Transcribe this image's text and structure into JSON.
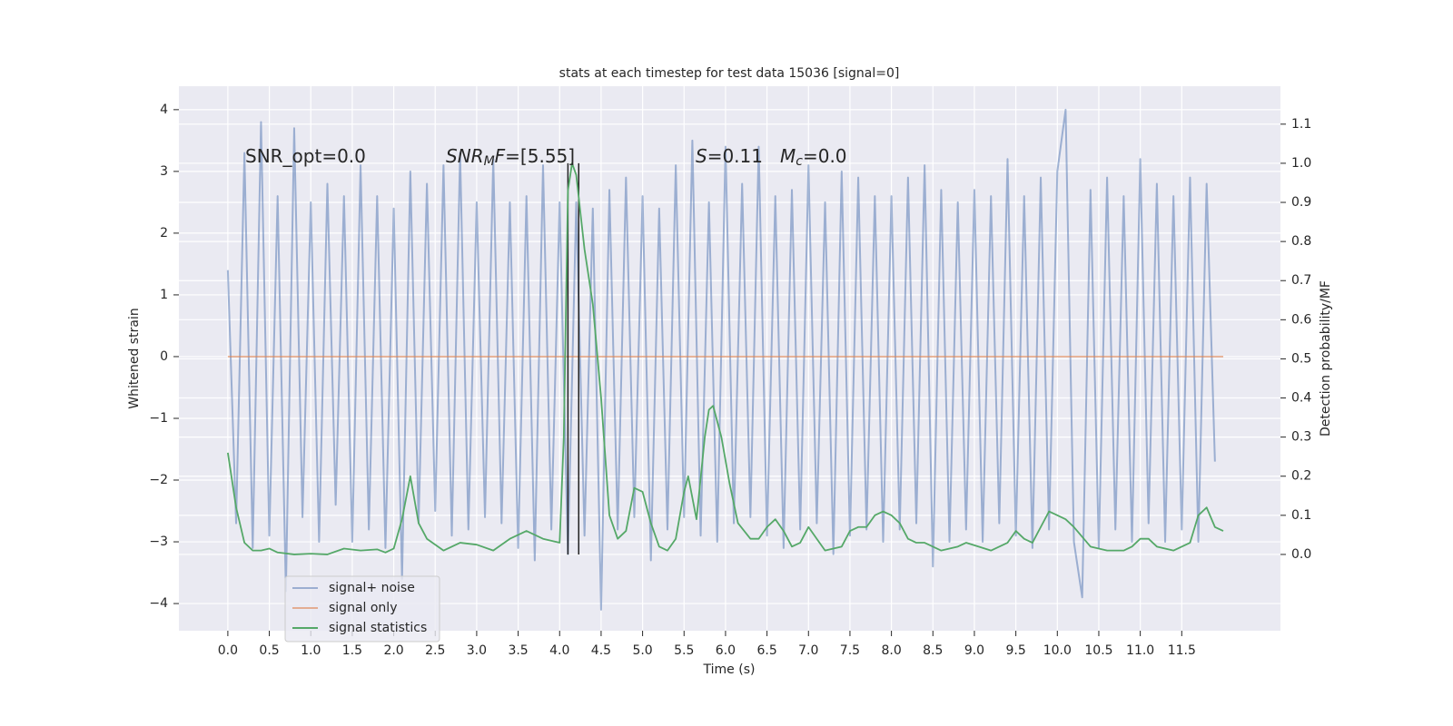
{
  "chart_data": {
    "type": "line",
    "title": "stats at each timestep for test data 15036 [signal=0]",
    "xlabel": "Time (s)",
    "ylabel": "Whitened strain",
    "y2label": "Detection probability/MF",
    "xlim": [
      -0.59,
      12.69
    ],
    "ylim": [
      -4.44,
      4.38
    ],
    "y2lim": [
      -0.195,
      1.197
    ],
    "xticks": [
      {
        "value": 0,
        "label": "0.0"
      },
      0.5,
      {
        "value": 1,
        "label": "1.0"
      },
      1.5,
      {
        "value": 2,
        "label": "2.0"
      },
      2.5,
      {
        "value": 3,
        "label": "3.0"
      },
      3.5,
      {
        "value": 4,
        "label": "4.0"
      },
      4.5,
      {
        "value": 5,
        "label": "5.0"
      },
      5.5,
      {
        "value": 6,
        "label": "6.0"
      },
      6.5,
      {
        "value": 7,
        "label": "7.0"
      },
      7.5,
      {
        "value": 8,
        "label": "8.0"
      },
      8.5,
      {
        "value": 9,
        "label": "9.0"
      },
      9.5,
      {
        "value": 10,
        "label": "10.0"
      },
      10.5,
      {
        "value": 11,
        "label": "11.0"
      },
      11.5
    ],
    "yticks": [
      {
        "value": -4,
        "label": "−4"
      },
      {
        "value": -3,
        "label": "−3"
      },
      {
        "value": -2,
        "label": "−2"
      },
      {
        "value": -1,
        "label": "−1"
      },
      0,
      1,
      2,
      3,
      4
    ],
    "y2ticks": [
      {
        "value": 0,
        "label": "0.0"
      },
      0.1,
      0.2,
      0.3,
      0.4,
      0.5,
      0.6,
      0.7,
      0.8,
      0.9,
      {
        "value": 1,
        "label": "1.0"
      },
      1.1
    ],
    "grid": true,
    "legend_loc": "lower left",
    "series": [
      {
        "name": "signal+ noise",
        "color": "#4c72b0",
        "opacity": 0.5,
        "x": [
          0.0,
          0.1,
          0.2,
          0.3,
          0.4,
          0.5,
          0.6,
          0.7,
          0.8,
          0.9,
          1.0,
          1.1,
          1.2,
          1.3,
          1.4,
          1.5,
          1.6,
          1.7,
          1.8,
          1.9,
          2.0,
          2.1,
          2.2,
          2.3,
          2.4,
          2.5,
          2.6,
          2.7,
          2.8,
          2.9,
          3.0,
          3.1,
          3.2,
          3.3,
          3.4,
          3.5,
          3.6,
          3.7,
          3.8,
          3.9,
          4.0,
          4.1,
          4.2,
          4.3,
          4.4,
          4.5,
          4.6,
          4.7,
          4.8,
          4.9,
          5.0,
          5.1,
          5.2,
          5.3,
          5.4,
          5.5,
          5.6,
          5.7,
          5.8,
          5.9,
          6.0,
          6.1,
          6.2,
          6.3,
          6.4,
          6.5,
          6.6,
          6.7,
          6.8,
          6.9,
          7.0,
          7.1,
          7.2,
          7.3,
          7.4,
          7.5,
          7.6,
          7.7,
          7.8,
          7.9,
          8.0,
          8.1,
          8.2,
          8.3,
          8.4,
          8.5,
          8.6,
          8.7,
          8.8,
          8.9,
          9.0,
          9.1,
          9.2,
          9.3,
          9.4,
          9.5,
          9.6,
          9.7,
          9.8,
          9.9,
          10.0,
          10.1,
          10.2,
          10.3,
          10.4,
          10.5,
          10.6,
          10.7,
          10.8,
          10.9,
          11.0,
          11.1,
          11.2,
          11.3,
          11.4,
          11.5,
          11.6,
          11.7,
          11.8,
          11.9
        ],
        "values": [
          1.4,
          -2.7,
          3.3,
          -3.1,
          3.8,
          -2.9,
          2.6,
          -3.8,
          3.7,
          -2.6,
          2.5,
          -3.0,
          2.8,
          -2.4,
          2.6,
          -3.0,
          3.1,
          -2.8,
          2.6,
          -3.1,
          2.4,
          -3.6,
          3.0,
          -2.7,
          2.8,
          -2.5,
          3.1,
          -2.9,
          3.3,
          -2.8,
          2.5,
          -2.6,
          3.2,
          -2.7,
          2.5,
          -3.1,
          2.6,
          -3.3,
          3.1,
          -2.8,
          2.5,
          -3.2,
          2.5,
          -2.9,
          2.4,
          -4.1,
          2.7,
          -2.8,
          2.9,
          -2.6,
          2.6,
          -3.3,
          2.4,
          -2.8,
          3.1,
          -2.6,
          3.5,
          -2.9,
          2.5,
          -3.0,
          3.4,
          -2.7,
          2.8,
          -2.6,
          3.4,
          -2.9,
          2.6,
          -3.1,
          2.7,
          -2.8,
          3.1,
          -2.7,
          2.5,
          -3.2,
          3.0,
          -2.9,
          2.9,
          -2.8,
          2.6,
          -3.0,
          2.6,
          -2.8,
          2.9,
          -2.7,
          3.1,
          -3.4,
          2.7,
          -3.0,
          2.5,
          -2.8,
          2.7,
          -3.0,
          2.6,
          -2.7,
          3.2,
          -2.9,
          2.6,
          -3.1,
          2.9,
          -2.8,
          3.0,
          4.0,
          -3.0,
          -3.9,
          2.7,
          -3.1,
          2.9,
          -2.8,
          2.6,
          -3.0,
          3.2,
          -2.7,
          2.8,
          -3.0,
          2.6,
          -2.8,
          2.9,
          -3.0,
          2.8,
          -1.7
        ]
      },
      {
        "name": "signal only",
        "color": "#dd8452",
        "opacity": 0.6,
        "x": [
          0,
          12
        ],
        "values": [
          0,
          0
        ]
      },
      {
        "name": "signal statistics",
        "color": "#55a868",
        "opacity": 1,
        "axis": "y2",
        "x": [
          0.0,
          0.1,
          0.2,
          0.3,
          0.4,
          0.5,
          0.6,
          0.8,
          1.0,
          1.2,
          1.4,
          1.6,
          1.8,
          1.9,
          2.0,
          2.1,
          2.2,
          2.3,
          2.4,
          2.6,
          2.8,
          3.0,
          3.2,
          3.4,
          3.6,
          3.8,
          4.0,
          4.05,
          4.1,
          4.15,
          4.2,
          4.3,
          4.4,
          4.5,
          4.6,
          4.7,
          4.8,
          4.9,
          5.0,
          5.1,
          5.2,
          5.3,
          5.4,
          5.5,
          5.55,
          5.65,
          5.75,
          5.8,
          5.85,
          5.95,
          6.05,
          6.15,
          6.3,
          6.4,
          6.5,
          6.6,
          6.7,
          6.8,
          6.9,
          7.0,
          7.1,
          7.2,
          7.4,
          7.5,
          7.6,
          7.7,
          7.8,
          7.9,
          8.0,
          8.1,
          8.2,
          8.3,
          8.4,
          8.6,
          8.8,
          8.9,
          9.2,
          9.4,
          9.5,
          9.6,
          9.7,
          9.9,
          10.0,
          10.1,
          10.2,
          10.4,
          10.6,
          10.8,
          10.9,
          11.0,
          11.1,
          11.2,
          11.4,
          11.6,
          11.7,
          11.8,
          11.9,
          12.0
        ],
        "values": [
          0.26,
          0.12,
          0.03,
          0.01,
          0.01,
          0.015,
          0.005,
          0.0,
          0.002,
          0.0,
          0.015,
          0.01,
          0.013,
          0.005,
          0.015,
          0.09,
          0.2,
          0.08,
          0.04,
          0.01,
          0.03,
          0.025,
          0.01,
          0.04,
          0.06,
          0.04,
          0.03,
          0.3,
          0.93,
          1.0,
          0.97,
          0.78,
          0.64,
          0.4,
          0.1,
          0.04,
          0.06,
          0.17,
          0.16,
          0.08,
          0.02,
          0.01,
          0.04,
          0.16,
          0.2,
          0.09,
          0.3,
          0.37,
          0.38,
          0.3,
          0.18,
          0.08,
          0.04,
          0.04,
          0.07,
          0.09,
          0.06,
          0.02,
          0.03,
          0.07,
          0.04,
          0.01,
          0.02,
          0.06,
          0.07,
          0.07,
          0.1,
          0.11,
          0.1,
          0.08,
          0.04,
          0.03,
          0.03,
          0.01,
          0.02,
          0.03,
          0.01,
          0.03,
          0.06,
          0.04,
          0.03,
          0.11,
          0.1,
          0.09,
          0.07,
          0.02,
          0.01,
          0.01,
          0.02,
          0.04,
          0.04,
          0.02,
          0.01,
          0.03,
          0.1,
          0.12,
          0.07,
          0.06
        ]
      }
    ],
    "vlines": {
      "x": [
        4.1,
        4.23
      ],
      "ymin": 0,
      "ymax": 1.0,
      "axis": "y2",
      "color": "#222222"
    },
    "annotations": [
      {
        "parts": [
          {
            "text": "SNR_opt=0.0"
          }
        ]
      },
      {
        "parts": [
          {
            "text": "SNR",
            "italic": true
          },
          {
            "text": "M",
            "italic": true,
            "sub": true
          },
          {
            "text": "F",
            "italic": true
          },
          {
            "text": "=[5.55]"
          }
        ]
      },
      {
        "parts": [
          {
            "text": "S",
            "italic": true
          },
          {
            "text": "=0.11"
          }
        ]
      },
      {
        "parts": [
          {
            "text": "M",
            "italic": true
          },
          {
            "text": "c",
            "italic": true,
            "sub": true
          },
          {
            "text": "=0.0"
          }
        ]
      }
    ]
  }
}
